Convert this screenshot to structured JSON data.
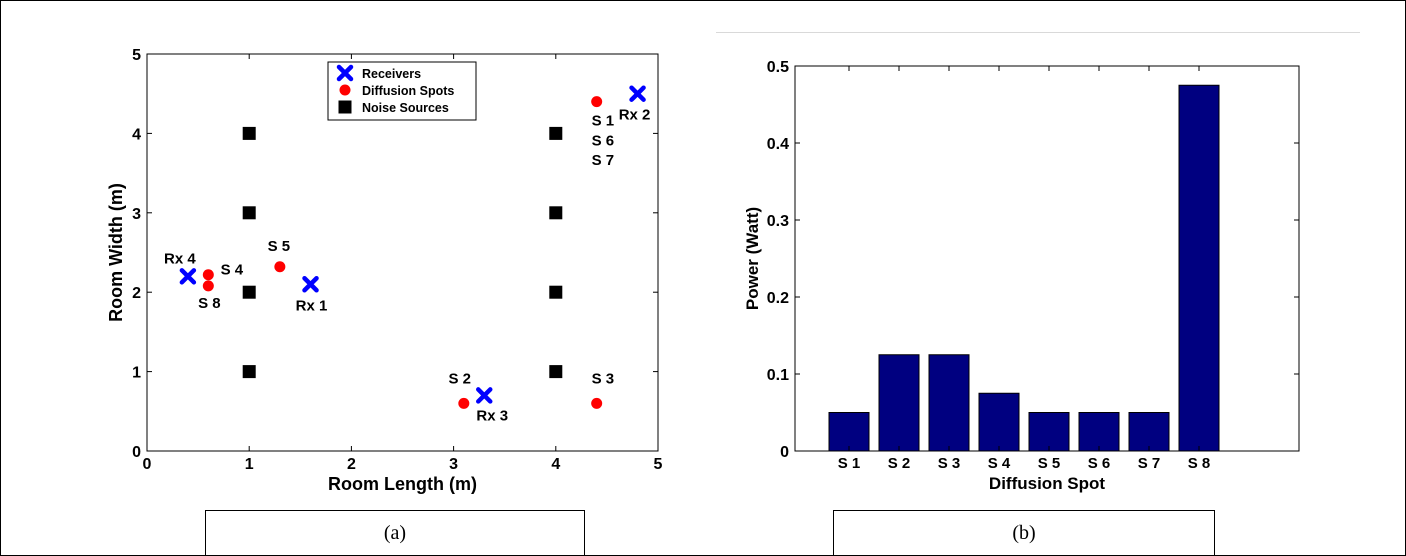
{
  "chart_data": [
    {
      "type": "scatter",
      "xlabel": "Room Length (m)",
      "ylabel": "Room Width (m)",
      "xlim": [
        0,
        5
      ],
      "ylim": [
        0,
        5
      ],
      "xticks": [
        "0",
        "1",
        "2",
        "3",
        "4",
        "5"
      ],
      "yticks": [
        "0",
        "1",
        "2",
        "3",
        "4",
        "5"
      ],
      "grid": false,
      "legend_position": "top-center",
      "series": [
        {
          "name": "Receivers",
          "marker": "x",
          "color": "#0000ff",
          "points": [
            {
              "x": 1.6,
              "y": 2.1,
              "label": "Rx 1"
            },
            {
              "x": 4.8,
              "y": 4.5,
              "label": "Rx 2"
            },
            {
              "x": 3.3,
              "y": 0.7,
              "label": "Rx 3"
            },
            {
              "x": 0.4,
              "y": 2.2,
              "label": "Rx 4"
            }
          ]
        },
        {
          "name": "Diffusion Spots",
          "marker": "circle",
          "color": "#ff0000",
          "points": [
            {
              "x": 4.4,
              "y": 4.4
            },
            {
              "x": 3.1,
              "y": 0.6
            },
            {
              "x": 4.4,
              "y": 0.6
            },
            {
              "x": 0.6,
              "y": 2.22
            },
            {
              "x": 1.3,
              "y": 2.32
            },
            {
              "x": 0.6,
              "y": 2.08
            }
          ]
        },
        {
          "name": "Noise Sources",
          "marker": "square",
          "color": "#000000",
          "points": [
            {
              "x": 1,
              "y": 1
            },
            {
              "x": 1,
              "y": 2
            },
            {
              "x": 1,
              "y": 3
            },
            {
              "x": 1,
              "y": 4
            },
            {
              "x": 4,
              "y": 1
            },
            {
              "x": 4,
              "y": 2
            },
            {
              "x": 4,
              "y": 3
            },
            {
              "x": 4,
              "y": 4
            }
          ]
        }
      ],
      "annotations": [
        {
          "text": "S 1",
          "x": 4.35,
          "y": 4.1
        },
        {
          "text": "S 6",
          "x": 4.35,
          "y": 3.85
        },
        {
          "text": "S 7",
          "x": 4.35,
          "y": 3.6
        },
        {
          "text": "S 2",
          "x": 2.95,
          "y": 0.85
        },
        {
          "text": "S 3",
          "x": 4.35,
          "y": 0.85
        },
        {
          "text": "S 4",
          "x": 0.72,
          "y": 2.22
        },
        {
          "text": "S 5",
          "x": 1.18,
          "y": 2.52
        },
        {
          "text": "S 8",
          "x": 0.5,
          "y": 1.8
        }
      ]
    },
    {
      "type": "bar",
      "categories": [
        "S 1",
        "S 2",
        "S 3",
        "S 4",
        "S 5",
        "S 6",
        "S 7",
        "S 8"
      ],
      "values": [
        0.05,
        0.125,
        0.125,
        0.075,
        0.05,
        0.05,
        0.05,
        0.475
      ],
      "xlabel": "Diffusion Spot",
      "ylabel": "Power (Watt)",
      "ylim": [
        0,
        0.5
      ],
      "yticks": [
        "0",
        "0.1",
        "0.2",
        "0.3",
        "0.4",
        "0.5"
      ],
      "bar_color": "#000080",
      "grid": false
    }
  ],
  "captions": [
    "(a)",
    "(b)"
  ],
  "colors": {
    "frame": "#000000",
    "separator": "#d9d9d9"
  }
}
